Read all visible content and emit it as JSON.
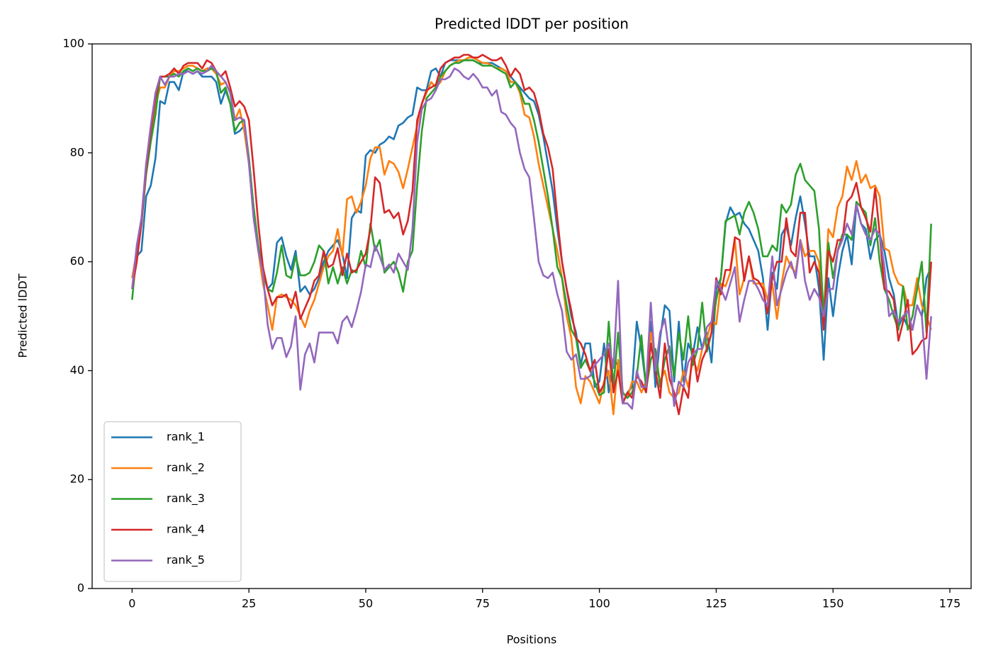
{
  "chart_data": {
    "type": "line",
    "title": "Predicted lDDT per position",
    "xlabel": "Positions",
    "ylabel": "Predicted lDDT",
    "x": [
      0,
      1,
      2,
      3,
      4,
      5,
      6,
      7,
      8,
      9,
      10,
      11,
      12,
      13,
      14,
      15,
      16,
      17,
      18,
      19,
      20,
      21,
      22,
      23,
      24,
      25,
      26,
      27,
      28,
      29,
      30,
      31,
      32,
      33,
      34,
      35,
      36,
      37,
      38,
      39,
      40,
      41,
      42,
      43,
      44,
      45,
      46,
      47,
      48,
      49,
      50,
      51,
      52,
      53,
      54,
      55,
      56,
      57,
      58,
      59,
      60,
      61,
      62,
      63,
      64,
      65,
      66,
      67,
      68,
      69,
      70,
      71,
      72,
      73,
      74,
      75,
      76,
      77,
      78,
      79,
      80,
      81,
      82,
      83,
      84,
      85,
      86,
      87,
      88,
      89,
      90,
      91,
      92,
      93,
      94,
      95,
      96,
      97,
      98,
      99,
      100,
      101,
      102,
      103,
      104,
      105,
      106,
      107,
      108,
      109,
      110,
      111,
      112,
      113,
      114,
      115,
      116,
      117,
      118,
      119,
      120,
      121,
      122,
      123,
      124,
      125,
      126,
      127,
      128,
      129,
      130,
      131,
      132,
      133,
      134,
      135,
      136,
      137,
      138,
      139,
      140,
      141,
      142,
      143,
      144,
      145,
      146,
      147,
      148,
      149,
      150,
      151,
      152,
      153,
      154,
      155,
      156,
      157,
      158,
      159,
      160,
      161,
      162,
      163,
      164,
      165,
      166,
      167,
      168,
      169,
      170,
      171
    ],
    "series": [
      {
        "name": "rank_1",
        "color": "#1f77b4",
        "values": [
          55,
          61,
          62,
          72,
          74,
          79,
          89.5,
          89,
          93,
          93,
          91.5,
          95,
          95,
          94.5,
          95,
          94,
          94,
          94,
          93,
          89,
          91.5,
          89,
          83.5,
          84,
          85,
          79,
          70,
          63,
          58,
          55,
          56,
          63.5,
          64.5,
          61,
          58.5,
          62,
          54.5,
          55.5,
          54,
          55,
          57,
          60,
          62,
          63,
          64,
          61.5,
          57,
          68,
          69.5,
          69,
          79.5,
          80.5,
          80,
          81.5,
          82,
          83,
          82.5,
          85,
          85.5,
          86.5,
          87,
          92,
          91.5,
          91.5,
          95,
          95.5,
          94,
          96.5,
          97,
          97,
          97,
          97,
          97,
          97,
          96.5,
          96.5,
          96.5,
          96.5,
          96,
          95.5,
          95,
          94,
          93,
          92,
          91,
          90,
          89.5,
          87,
          83,
          78,
          73,
          66,
          60,
          55,
          50,
          47,
          41,
          45,
          45,
          37,
          38,
          45,
          36,
          42,
          41,
          34,
          36,
          37,
          49,
          44,
          37,
          49,
          37,
          46,
          52,
          51,
          38,
          49,
          38,
          45,
          43,
          48,
          44,
          47,
          41.5,
          55,
          57,
          67,
          70,
          68.5,
          69,
          67,
          66,
          64,
          62,
          57,
          47.5,
          58,
          55,
          65,
          66.5,
          63,
          68,
          72,
          67,
          61,
          61,
          55,
          42,
          57,
          50,
          57,
          62,
          65,
          59.5,
          70.5,
          67,
          66,
          60.5,
          64,
          65,
          62,
          57,
          54,
          48,
          50,
          48,
          47.5,
          52,
          50,
          57,
          59
        ]
      },
      {
        "name": "rank_2",
        "color": "#ff7f0e",
        "values": [
          57,
          62,
          67,
          78,
          83,
          89,
          92,
          92,
          94,
          95,
          95,
          95.5,
          96,
          96,
          95.5,
          95,
          95.5,
          95.5,
          94.5,
          92.5,
          93,
          91,
          86,
          88,
          84,
          78,
          70,
          62,
          56,
          52,
          47.5,
          53.5,
          54,
          53.5,
          53,
          52,
          50,
          48,
          51,
          53,
          56,
          59,
          61,
          62,
          66,
          61,
          71.5,
          72,
          69,
          71,
          74,
          79,
          81,
          81,
          76,
          78.5,
          78,
          76.5,
          73.5,
          77,
          81,
          85,
          89,
          91,
          93,
          92,
          93,
          95,
          96,
          96.5,
          97,
          97,
          97.5,
          97.5,
          97,
          96.5,
          96.5,
          96,
          95.5,
          95.5,
          95,
          93,
          93,
          91,
          87,
          86.5,
          83,
          78,
          74,
          70,
          66,
          62,
          57,
          50,
          46,
          37,
          34,
          39,
          38,
          36,
          34,
          38,
          40,
          32,
          42,
          36,
          35,
          38,
          38,
          36,
          38,
          47,
          42,
          38,
          40,
          36,
          35,
          36,
          40,
          37,
          42,
          40,
          44,
          46,
          49,
          48.5,
          56,
          55.5,
          58,
          64,
          54,
          57,
          61,
          56,
          56,
          56,
          53,
          56,
          49.5,
          56,
          61,
          59,
          58,
          64,
          61,
          62,
          62,
          60,
          50,
          66,
          64.5,
          70,
          72,
          77.5,
          75,
          78.5,
          74.5,
          76,
          73.5,
          74,
          72,
          62.5,
          62,
          58,
          56,
          55.5,
          52,
          52,
          57,
          52,
          50,
          47.5
        ]
      },
      {
        "name": "rank_3",
        "color": "#2ca02c",
        "values": [
          53,
          62,
          67,
          76,
          82,
          87,
          94,
          94,
          94,
          94.5,
          94,
          95,
          95.5,
          95,
          95.5,
          95,
          95,
          95.5,
          95,
          91,
          92,
          89,
          84,
          85.5,
          86,
          79,
          70,
          63,
          58,
          55,
          54.5,
          58,
          63,
          57.5,
          57,
          61,
          57.5,
          57.5,
          58,
          60,
          63,
          62,
          56,
          59,
          56,
          59,
          56,
          58.5,
          58,
          62,
          59,
          67,
          62,
          64,
          58,
          59,
          60,
          58,
          54.5,
          60,
          62,
          74,
          84,
          90,
          91,
          92,
          94,
          95,
          96,
          96.5,
          96.5,
          97,
          97,
          97,
          96.5,
          96,
          96,
          96,
          95.5,
          95,
          94.5,
          92,
          93,
          91.5,
          89,
          89,
          86,
          82,
          77,
          72,
          66,
          59,
          57,
          52,
          47.5,
          46,
          40.5,
          42,
          40,
          38,
          35.5,
          36,
          49,
          37,
          47,
          36,
          35,
          36,
          39,
          46.5,
          36.5,
          42,
          44,
          37,
          42,
          44.5,
          39,
          47,
          42,
          50,
          41,
          44,
          52.5,
          43.5,
          47,
          53,
          57,
          67.5,
          68,
          68.5,
          65,
          69,
          71,
          69,
          66,
          61,
          61,
          63,
          62,
          70.5,
          69,
          70.5,
          76,
          78,
          75,
          74,
          73,
          66,
          50,
          63.5,
          57,
          62,
          65,
          65,
          64,
          71,
          70,
          69,
          63,
          68,
          60,
          55,
          53,
          50,
          47.5,
          55.5,
          47.5,
          50,
          55,
          60,
          47,
          67
        ]
      },
      {
        "name": "rank_4",
        "color": "#d62728",
        "values": [
          55,
          60,
          67,
          77,
          84,
          90,
          94,
          94,
          94.5,
          95.5,
          94.5,
          96,
          96.5,
          96.5,
          96.5,
          95.5,
          97,
          96.5,
          95,
          94,
          95,
          92,
          88.5,
          89.5,
          88.5,
          86,
          77,
          67,
          59,
          55,
          52,
          53.5,
          53.5,
          54,
          51.5,
          54.5,
          49.5,
          51.5,
          53.5,
          56.5,
          57.5,
          62,
          59,
          59.5,
          62.5,
          57.5,
          61.5,
          58,
          58.5,
          60,
          61.5,
          66,
          75.5,
          74.5,
          69,
          69.5,
          68,
          69,
          65,
          67.5,
          73,
          86,
          89,
          91.5,
          92,
          92.5,
          95.5,
          96.5,
          97,
          97.5,
          97.5,
          98,
          98,
          97.5,
          97.5,
          98,
          97.5,
          97,
          97,
          97.5,
          96,
          94,
          95.5,
          94.5,
          91.5,
          92,
          91,
          88,
          83.5,
          81,
          77,
          68,
          60,
          55,
          51,
          46,
          45,
          43,
          40,
          42,
          36,
          37.5,
          44,
          36,
          40,
          34,
          36,
          35,
          39,
          38,
          36,
          45,
          40,
          35,
          45,
          38.5,
          36,
          32,
          37,
          35,
          44,
          38,
          42,
          44,
          47,
          57,
          54,
          58.5,
          58.5,
          64.5,
          64,
          56.5,
          61,
          57,
          56.5,
          55,
          50.5,
          57,
          60,
          60,
          68,
          62,
          61,
          69,
          69,
          58,
          60,
          58,
          47.5,
          62,
          60,
          64,
          64,
          71,
          72,
          74.5,
          70,
          68,
          65.5,
          73.5,
          65,
          55,
          54.5,
          53,
          45.5,
          49,
          53,
          43,
          44,
          45.5,
          46,
          60
        ]
      },
      {
        "name": "rank_5",
        "color": "#9467bd",
        "values": [
          55,
          63,
          68,
          78,
          85,
          91,
          94,
          92.5,
          94,
          94,
          94.5,
          94.5,
          95,
          94.5,
          95,
          94.5,
          95,
          96,
          95,
          94,
          93,
          91,
          86,
          86.5,
          86,
          78,
          68,
          62,
          58,
          48.5,
          44,
          46,
          46,
          42.5,
          44.5,
          50,
          36.5,
          43,
          45,
          41.5,
          47,
          47,
          47,
          47,
          45,
          49,
          50,
          48,
          51,
          54.5,
          59.5,
          59,
          63,
          61,
          58.5,
          59.5,
          58,
          61.5,
          60,
          58.5,
          66,
          82,
          88,
          89.5,
          90,
          91.5,
          93.5,
          93.5,
          94,
          95.5,
          95,
          94,
          93.5,
          94.5,
          93.5,
          92,
          92,
          90.5,
          91.5,
          87.5,
          87,
          85.5,
          84.5,
          80,
          77,
          75.5,
          68,
          60,
          57.5,
          57,
          58,
          54,
          51,
          43.5,
          42,
          43,
          38.5,
          38.5,
          39,
          41,
          42,
          43,
          45,
          40.5,
          56.5,
          34,
          34,
          33,
          40,
          37,
          37,
          52.5,
          40,
          47,
          49.5,
          43,
          33.5,
          38,
          37,
          41.5,
          43,
          44,
          44,
          48,
          49,
          56.5,
          55,
          53,
          56,
          59,
          49,
          53,
          56.5,
          56.5,
          55,
          53,
          52,
          61,
          52,
          55,
          58,
          60,
          57,
          64,
          56.5,
          53,
          55,
          53.5,
          50,
          55,
          55,
          62,
          64,
          67,
          65,
          70.5,
          67,
          65,
          64,
          66,
          65,
          59,
          50,
          51,
          49,
          50,
          51,
          47.5,
          52,
          50,
          38.5,
          50
        ]
      }
    ],
    "xlim": [
      -8.55,
      179.55
    ],
    "xticks": [
      0,
      25,
      50,
      75,
      100,
      125,
      150,
      175
    ],
    "ylim": [
      0,
      100
    ],
    "yticks": [
      0,
      20,
      40,
      60,
      80,
      100
    ],
    "legend": "lower left",
    "grid": false
  }
}
